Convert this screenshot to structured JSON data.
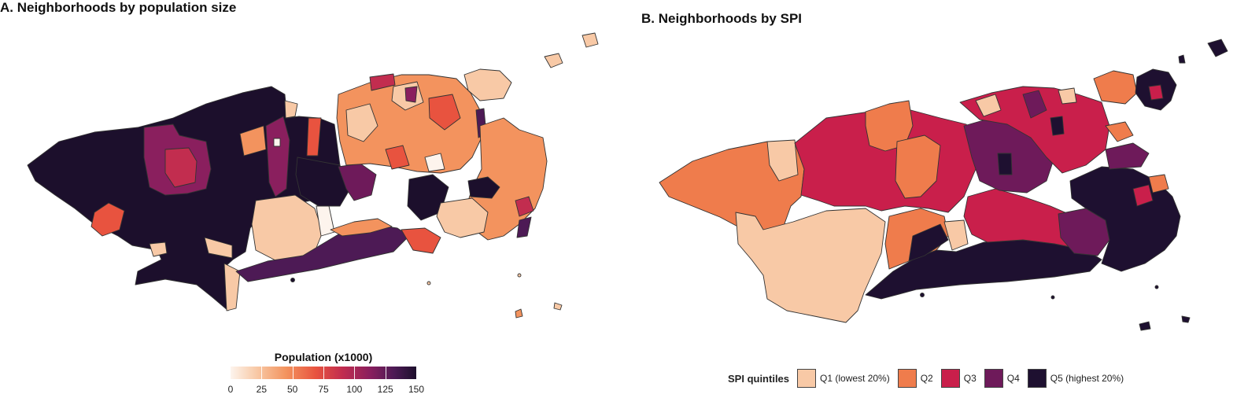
{
  "panel_a": {
    "title": "A. Neighborhoods by population size",
    "legend_title": "Population (x1000)",
    "ticks": [
      "0",
      "25",
      "50",
      "75",
      "100",
      "125",
      "150"
    ],
    "tick_values": [
      0,
      25,
      50,
      75,
      100,
      125,
      150
    ],
    "range": [
      0,
      150
    ]
  },
  "panel_b": {
    "title": "B. Neighborhoods by SPI",
    "legend_title": "SPI quintiles",
    "items": [
      {
        "label": "Q1 (lowest 20%)",
        "color": "#f8c9a6"
      },
      {
        "label": "Q2",
        "color": "#ef7c4c"
      },
      {
        "label": "Q3",
        "color": "#c91f4b"
      },
      {
        "label": "Q4",
        "color": "#6e1a5a"
      },
      {
        "label": "Q5 (highest 20%)",
        "color": "#1e1030"
      }
    ]
  },
  "colors": {
    "pop_scale": [
      "#fdf4ed",
      "#f8c9a6",
      "#f3935e",
      "#e8533f",
      "#c22d4f",
      "#8a1f5e",
      "#4d1a55",
      "#1c0f2c"
    ],
    "border": "#333333"
  }
}
